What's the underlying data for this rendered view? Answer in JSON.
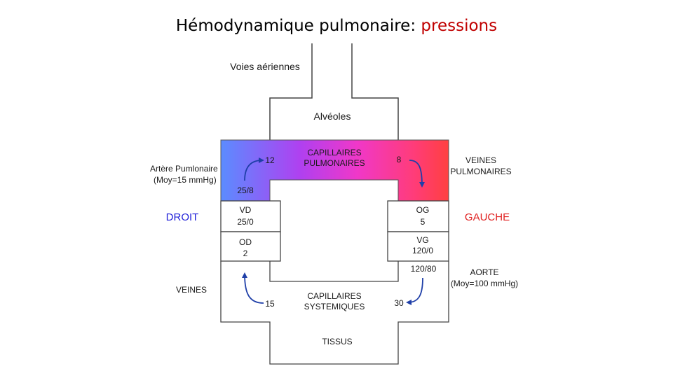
{
  "title": {
    "main": "Hémodynamique pulmonaire: ",
    "accent": "pressions"
  },
  "labels": {
    "voies": "Voies aériennes",
    "alveoles": "Alvéoles",
    "capillaires_pulm_1": "CAPILLAIRES",
    "capillaires_pulm_2": "PULMONAIRES",
    "p_12": "12",
    "p_8": "8",
    "p_25_8": "25/8",
    "artere_1": "Artère Pumlonaire",
    "artere_2": "(Moy=15 mmHg)",
    "veines_pulm_1": "VEINES",
    "veines_pulm_2": "PULMONAIRES",
    "droit": "DROIT",
    "gauche": "GAUCHE",
    "vd": "VD",
    "vd_p": "25/0",
    "od": "OD",
    "od_p": "2",
    "og": "OG",
    "og_p": "5",
    "vg": "VG",
    "vg_p": "120/0",
    "p_120_80": "120/80",
    "aorte_1": "AORTE",
    "aorte_2": "(Moy=100 mmHg)",
    "veines": "VEINES",
    "cap_sys_1": "CAPILLAIRES",
    "cap_sys_2": "SYSTEMIQUES",
    "p_15": "15",
    "p_30": "30",
    "tissus": "TISSUS"
  },
  "colors": {
    "gradient_left": "#5b8cff",
    "gradient_mid": "#c83cf0",
    "gradient_mid2": "#ff3ca0",
    "gradient_right": "#ff4040",
    "arrow": "#1f3fa8",
    "droit": "#1f1fd8",
    "gauche": "#e02020",
    "title_accent": "#c00000"
  }
}
